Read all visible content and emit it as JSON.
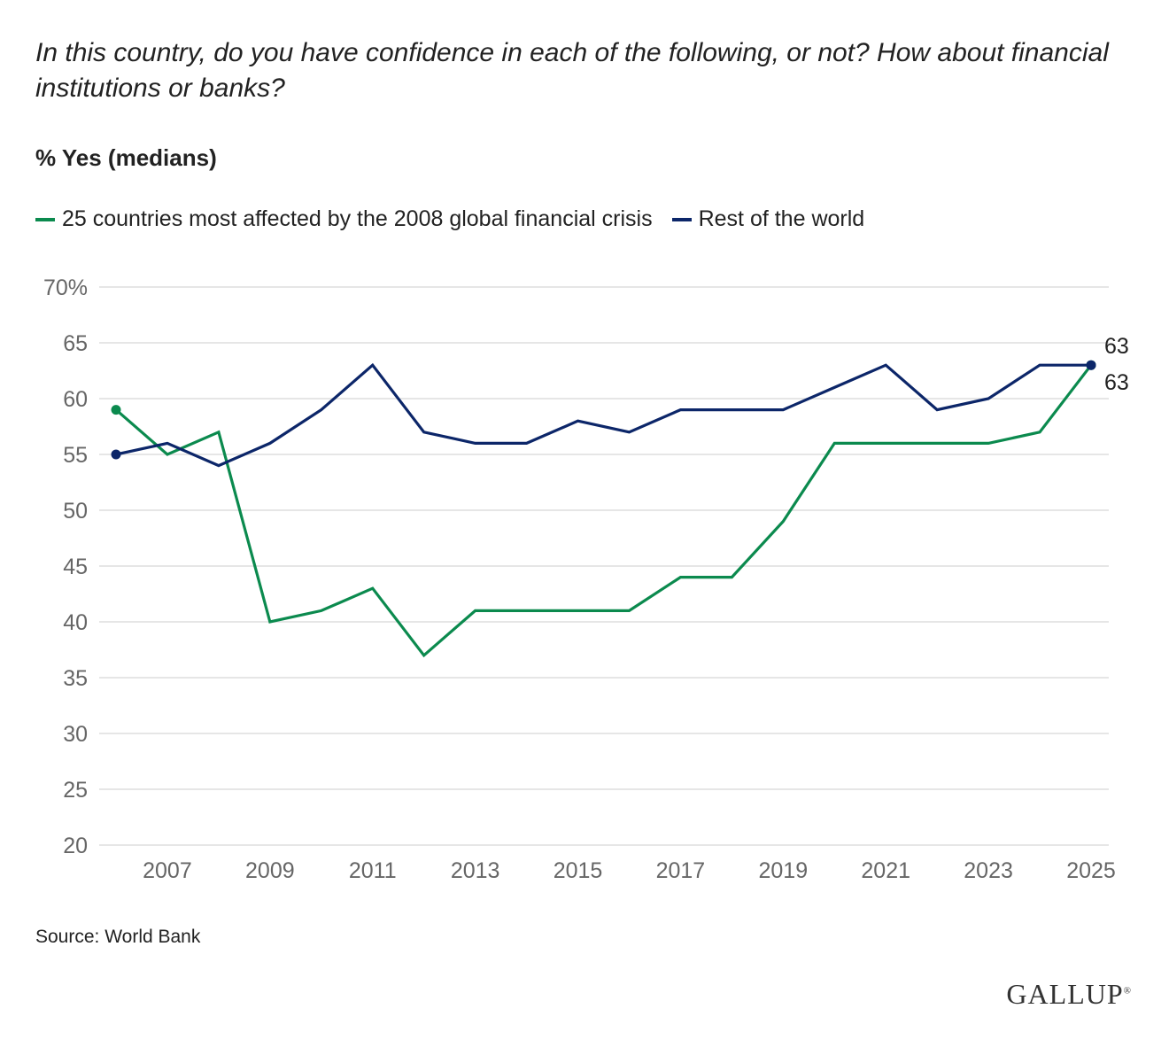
{
  "question": "In this country, do you have confidence in each of the following, or not? How about financial institutions or banks?",
  "subtitle": "% Yes (medians)",
  "source": "Source: World Bank",
  "logo": "GALLUP",
  "colors": {
    "green": "#0b8a4e",
    "navy": "#0c2669",
    "grid": "#e6e6e6"
  },
  "chart_data": {
    "type": "line",
    "title": "",
    "xlabel": "",
    "ylabel": "% Yes (medians)",
    "x": [
      2006,
      2007,
      2008,
      2009,
      2010,
      2011,
      2012,
      2013,
      2014,
      2015,
      2016,
      2017,
      2018,
      2019,
      2020,
      2021,
      2022,
      2023,
      2024,
      2025
    ],
    "xticks": [
      "2007",
      "2009",
      "2011",
      "2013",
      "2015",
      "2017",
      "2019",
      "2021",
      "2023",
      "2025"
    ],
    "yticks": [
      "20",
      "25",
      "30",
      "35",
      "40",
      "45",
      "50",
      "55",
      "60",
      "65",
      "70%"
    ],
    "ylim": [
      20,
      70
    ],
    "grid": true,
    "legend_position": "top-left",
    "series": [
      {
        "name": "25 countries most affected by the 2008 global financial crisis",
        "color": "#0b8a4e",
        "values": [
          59,
          55,
          57,
          40,
          41,
          43,
          37,
          41,
          41,
          41,
          41,
          44,
          44,
          49,
          56,
          56,
          56,
          56,
          57,
          63
        ],
        "end_label": "63"
      },
      {
        "name": "Rest of the world",
        "color": "#0c2669",
        "values": [
          55,
          56,
          54,
          56,
          59,
          63,
          57,
          56,
          56,
          58,
          57,
          59,
          59,
          59,
          61,
          63,
          59,
          60,
          63,
          63
        ],
        "end_label": "63"
      }
    ]
  }
}
